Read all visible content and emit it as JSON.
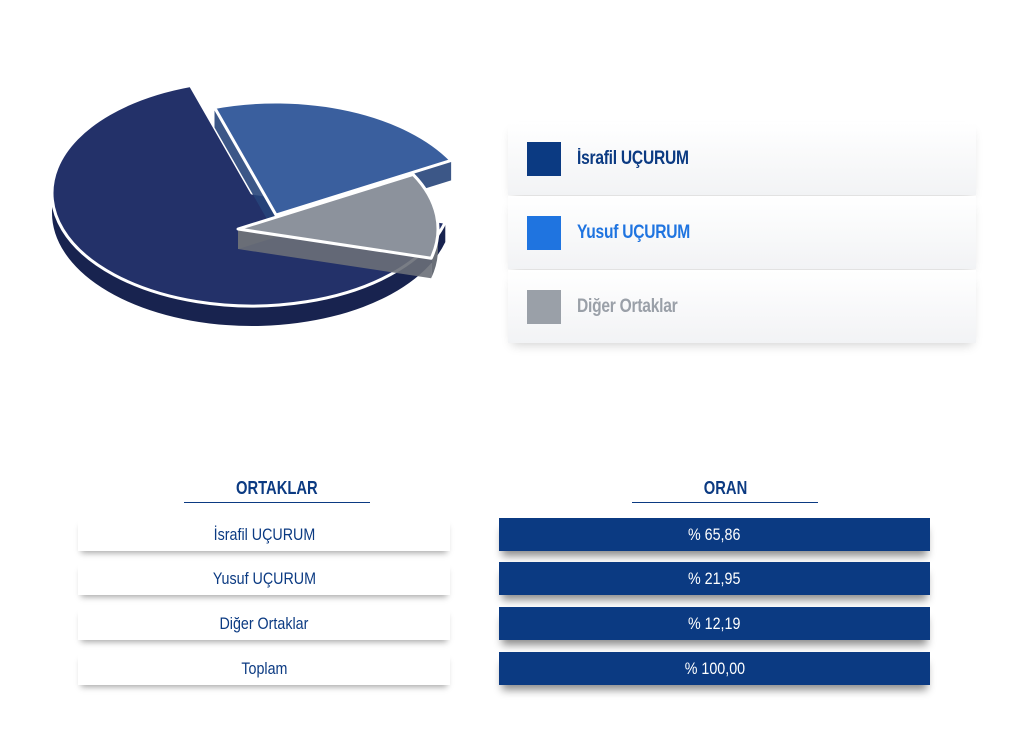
{
  "chart_data": {
    "type": "pie",
    "style": "3d-exploded",
    "slices": [
      {
        "label": "İsrafil UÇURUM",
        "value": 65.86,
        "color": "#233169",
        "side_color": "#18234f",
        "legend_color": "#0b3a82"
      },
      {
        "label": "Yusuf UÇURUM",
        "value": 21.95,
        "color": "#3a5f9e",
        "side_color": "#27457a",
        "legend_color": "#1f74e0"
      },
      {
        "label": "Diğer Ortaklar",
        "value": 12.19,
        "color": "#8c929c",
        "side_color": "#6a6f78",
        "legend_color": "#9aa0a8"
      }
    ],
    "legend_placement": "right"
  },
  "legend": {
    "items": [
      {
        "label": "İsrafil UÇURUM",
        "color": "#0b3a82",
        "text_color": "#0b3a82"
      },
      {
        "label": "Yusuf UÇURUM",
        "color": "#1f74e0",
        "text_color": "#1f74e0"
      },
      {
        "label": "Diğer Ortaklar",
        "color": "#9aa0a8",
        "text_color": "#9aa0a8"
      }
    ]
  },
  "table": {
    "headers": {
      "partners": "ORTAKLAR",
      "ratio": "ORAN"
    },
    "rows": [
      {
        "name": "İsrafil UÇURUM",
        "ratio": "% 65,86"
      },
      {
        "name": "Yusuf UÇURUM",
        "ratio": "% 21,95"
      },
      {
        "name": "Diğer Ortaklar",
        "ratio": "% 12,19"
      },
      {
        "name": "Toplam",
        "ratio": "% 100,00"
      }
    ]
  }
}
